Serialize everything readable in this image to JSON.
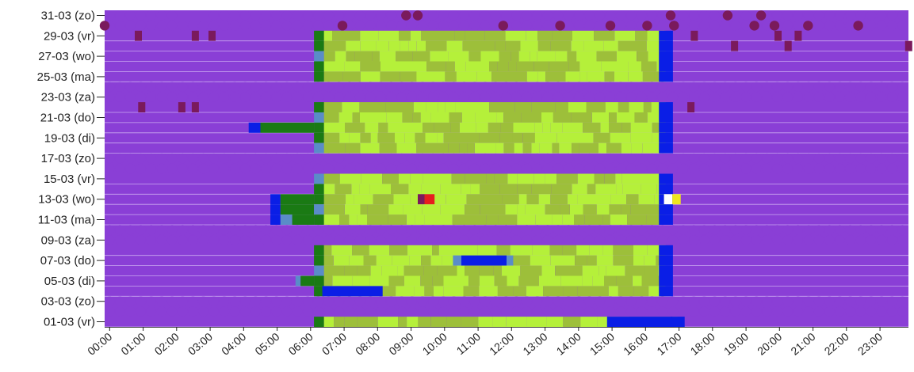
{
  "chart_data": {
    "type": "heatmap",
    "title": "",
    "xlabel": "",
    "ylabel": "",
    "grid": false,
    "legend": "none",
    "x_ticks": [
      "00:00",
      "01:00",
      "02:00",
      "03:00",
      "04:00",
      "05:00",
      "06:00",
      "07:00",
      "08:00",
      "09:00",
      "10:00",
      "11:00",
      "12:00",
      "13:00",
      "14:00",
      "15:00",
      "16:00",
      "17:00",
      "18:00",
      "19:00",
      "20:00",
      "21:00",
      "22:00",
      "23:00"
    ],
    "xlim": [
      0,
      24
    ],
    "y_ticks": [
      "31-03 (zo)",
      "29-03 (vr)",
      "27-03 (wo)",
      "25-03 (ma)",
      "23-03 (za)",
      "21-03 (do)",
      "19-03 (di)",
      "17-03 (zo)",
      "15-03 (vr)",
      "13-03 (wo)",
      "11-03 (ma)",
      "09-03 (za)",
      "07-03 (do)",
      "05-03 (di)",
      "03-03 (zo)",
      "01-03 (vr)"
    ],
    "rows": 31,
    "colors": {
      "background": "#8a3fd6",
      "light_green": "#b5f03a",
      "mid_green": "#9dbf3a",
      "dark_green": "#1a7a14",
      "steel_blue": "#5a8cc8",
      "blue": "#0a1ee6",
      "maroon": "#7a1a5c",
      "red": "#e61e1e",
      "yellow": "#f0e61e",
      "white": "#ffffff"
    }
  }
}
